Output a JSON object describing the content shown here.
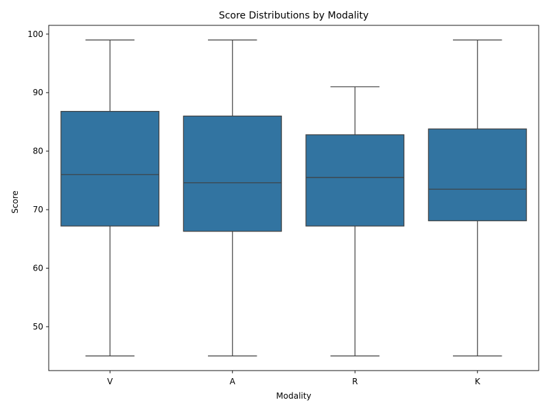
{
  "chart_data": {
    "type": "box",
    "title": "Score Distributions by Modality",
    "xlabel": "Modality",
    "ylabel": "Score",
    "categories": [
      "V",
      "A",
      "R",
      "K"
    ],
    "ylim": [
      42.5,
      101.5
    ],
    "yticks": [
      50,
      60,
      70,
      80,
      90,
      100
    ],
    "grid": false,
    "box_color": "#3274a1",
    "line_color": "#3f3f3f",
    "boxes": [
      {
        "category": "V",
        "min": 45,
        "q1": 67.2,
        "median": 76.0,
        "q3": 86.8,
        "max": 99
      },
      {
        "category": "A",
        "min": 45,
        "q1": 66.3,
        "median": 74.6,
        "q3": 86.0,
        "max": 99
      },
      {
        "category": "R",
        "min": 45,
        "q1": 67.2,
        "median": 75.5,
        "q3": 82.8,
        "max": 91
      },
      {
        "category": "K",
        "min": 45,
        "q1": 68.1,
        "median": 73.5,
        "q3": 83.8,
        "max": 99
      }
    ]
  }
}
